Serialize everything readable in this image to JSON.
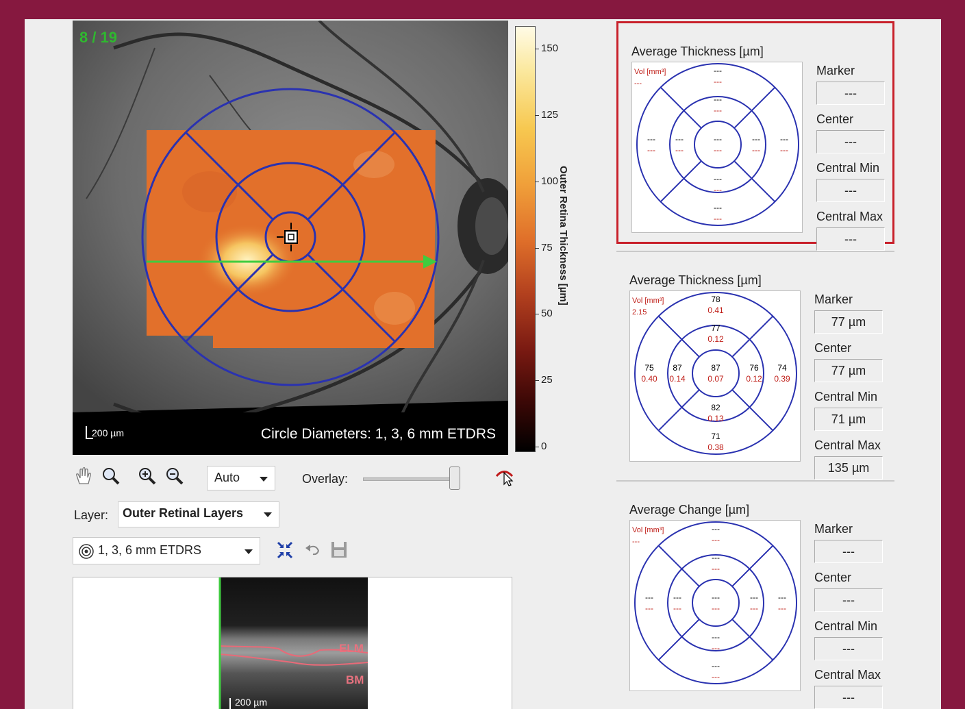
{
  "fundus": {
    "slice": "8 / 19",
    "scale": "200 µm",
    "circle_caption": "Circle Diameters: 1, 3, 6 mm ETDRS"
  },
  "colorbar": {
    "title": "Outer Retina Thickness [µm]",
    "ticks": [
      "150",
      "125",
      "100",
      "75",
      "50",
      "25",
      "0"
    ]
  },
  "toolbar": {
    "zoom_mode": "Auto",
    "overlay_label": "Overlay:",
    "overlay_value": 1.0,
    "layer_label": "Layer:",
    "layer_value": "Outer Retinal Layers",
    "grid_value": "1, 3, 6 mm ETDRS"
  },
  "bscan": {
    "elm_label": "ELM",
    "bm_label": "BM",
    "scale": "200 µm"
  },
  "panels": [
    {
      "title": "Average Thickness [µm]",
      "vol_label": "Vol [mm³]",
      "vol_value": "---",
      "selected": true,
      "sectors": {
        "center": [
          "---",
          "---"
        ],
        "inner_top": [
          "---",
          "---"
        ],
        "inner_bottom": [
          "---",
          "---"
        ],
        "inner_left": [
          "---",
          "---"
        ],
        "inner_right": [
          "---",
          "---"
        ],
        "outer_top": [
          "---",
          "---"
        ],
        "outer_bottom": [
          "---",
          "---"
        ],
        "outer_left": [
          "---",
          "---"
        ],
        "outer_right": [
          "---",
          "---"
        ]
      },
      "stats": [
        {
          "label": "Marker",
          "value": "---"
        },
        {
          "label": "Center",
          "value": "---"
        },
        {
          "label": "Central Min",
          "value": "---"
        },
        {
          "label": "Central Max",
          "value": "---"
        }
      ]
    },
    {
      "title": "Average Thickness [µm]",
      "vol_label": "Vol [mm³]",
      "vol_value": "2.15",
      "selected": false,
      "sectors": {
        "center": [
          "87",
          "0.07"
        ],
        "inner_top": [
          "77",
          "0.12"
        ],
        "inner_bottom": [
          "82",
          "0.13"
        ],
        "inner_left": [
          "87",
          "0.14"
        ],
        "inner_right": [
          "76",
          "0.12"
        ],
        "outer_top": [
          "78",
          "0.41"
        ],
        "outer_bottom": [
          "71",
          "0.38"
        ],
        "outer_left": [
          "75",
          "0.40"
        ],
        "outer_right": [
          "74",
          "0.39"
        ]
      },
      "stats": [
        {
          "label": "Marker",
          "value": "77 µm"
        },
        {
          "label": "Center",
          "value": "77 µm"
        },
        {
          "label": "Central Min",
          "value": "71 µm"
        },
        {
          "label": "Central Max",
          "value": "135 µm"
        }
      ]
    },
    {
      "title": "Average Change [µm]",
      "vol_label": "Vol [mm³]",
      "vol_value": "---",
      "selected": false,
      "sectors": {
        "center": [
          "---",
          "---"
        ],
        "inner_top": [
          "---",
          "---"
        ],
        "inner_bottom": [
          "---",
          "---"
        ],
        "inner_left": [
          "---",
          "---"
        ],
        "inner_right": [
          "---",
          "---"
        ],
        "outer_top": [
          "---",
          "---"
        ],
        "outer_bottom": [
          "---",
          "---"
        ],
        "outer_left": [
          "---",
          "---"
        ],
        "outer_right": [
          "---",
          "---"
        ]
      },
      "stats": [
        {
          "label": "Marker",
          "value": "---"
        },
        {
          "label": "Center",
          "value": "---"
        },
        {
          "label": "Central Min",
          "value": "---"
        },
        {
          "label": "Central Max",
          "value": "---"
        }
      ]
    }
  ]
}
